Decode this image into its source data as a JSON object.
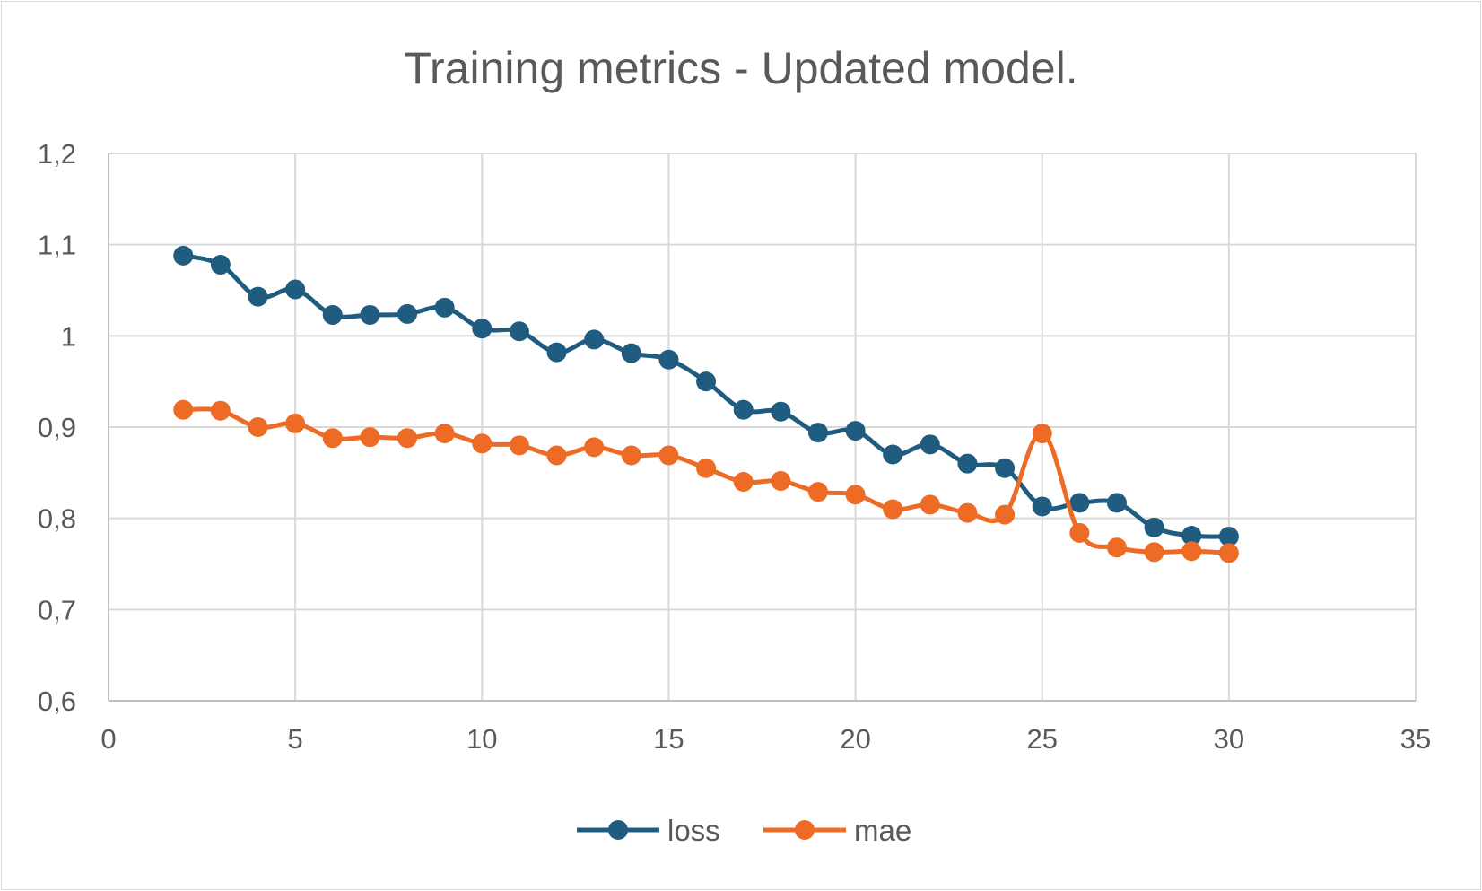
{
  "chart_data": {
    "type": "line",
    "title": "Training metrics - Updated model.",
    "xlabel": "",
    "ylabel": "",
    "xlim": [
      0,
      35
    ],
    "ylim": [
      0.6,
      1.2
    ],
    "x_ticks": [
      0,
      5,
      10,
      15,
      20,
      25,
      30,
      35
    ],
    "y_ticks": [
      0.6,
      0.7,
      0.8,
      0.9,
      1.0,
      1.1,
      1.2
    ],
    "x_tick_labels": [
      "0",
      "5",
      "10",
      "15",
      "20",
      "25",
      "30",
      "35"
    ],
    "y_tick_labels": [
      "0,6",
      "0,7",
      "0,8",
      "0,9",
      "1",
      "1,1",
      "1,2"
    ],
    "grid": true,
    "legend_position": "bottom",
    "x": [
      2,
      3,
      4,
      5,
      6,
      7,
      8,
      9,
      10,
      11,
      12,
      13,
      14,
      15,
      16,
      17,
      18,
      19,
      20,
      21,
      22,
      23,
      24,
      25,
      26,
      27,
      28,
      29,
      30
    ],
    "series": [
      {
        "name": "loss",
        "color": "#1f5c7f",
        "values": [
          1.088,
          1.078,
          1.043,
          1.051,
          1.023,
          1.023,
          1.024,
          1.031,
          1.008,
          1.005,
          0.982,
          0.996,
          0.981,
          0.974,
          0.95,
          0.919,
          0.917,
          0.894,
          0.896,
          0.87,
          0.881,
          0.86,
          0.855,
          0.813,
          0.817,
          0.817,
          0.79,
          0.781,
          0.78
        ]
      },
      {
        "name": "mae",
        "color": "#ee6b25",
        "values": [
          0.919,
          0.918,
          0.9,
          0.904,
          0.888,
          0.889,
          0.888,
          0.893,
          0.882,
          0.88,
          0.869,
          0.878,
          0.869,
          0.869,
          0.855,
          0.84,
          0.841,
          0.829,
          0.826,
          0.81,
          0.815,
          0.806,
          0.804,
          0.893,
          0.784,
          0.768,
          0.763,
          0.764,
          0.762
        ]
      }
    ]
  }
}
